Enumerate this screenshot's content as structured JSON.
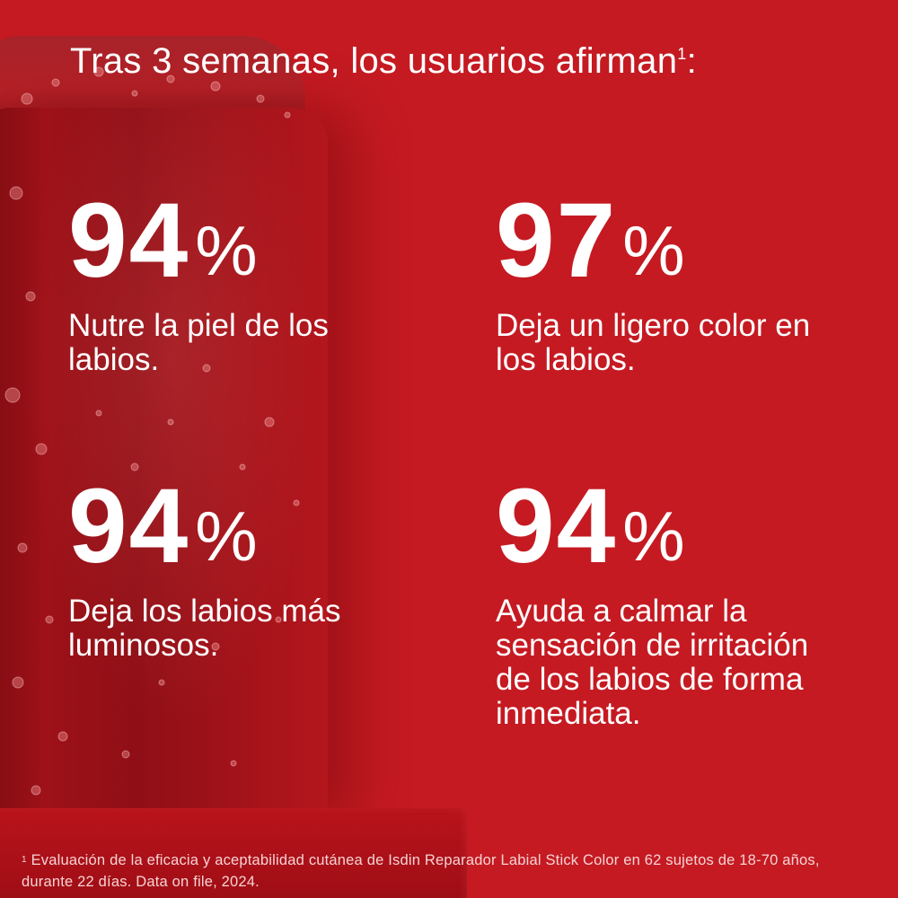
{
  "headline": {
    "text": "Tras 3 semanas, los usuarios afirman",
    "superscript": "1",
    "suffix": ":"
  },
  "stats": [
    {
      "value": "94",
      "unit": "%",
      "description": "Nutre la piel de los labios."
    },
    {
      "value": "97",
      "unit": "%",
      "description": "Deja un ligero color en los labios."
    },
    {
      "value": "94",
      "unit": "%",
      "description": "Deja los labios más luminosos."
    },
    {
      "value": "94",
      "unit": "%",
      "description": "Ayuda a calmar la sensación de irritación de los labios de forma inmediata."
    }
  ],
  "footnote": {
    "marker": "1",
    "text": "Evaluación de la eficacia y aceptabilidad cutánea de Isdin Reparador Labial Stick Color en 62 sujetos de 18-70 años, durante 22 días. Data on file, 2024."
  },
  "colors": {
    "background": "#c51a22",
    "text": "#ffffff",
    "stick": "#9e1118"
  }
}
